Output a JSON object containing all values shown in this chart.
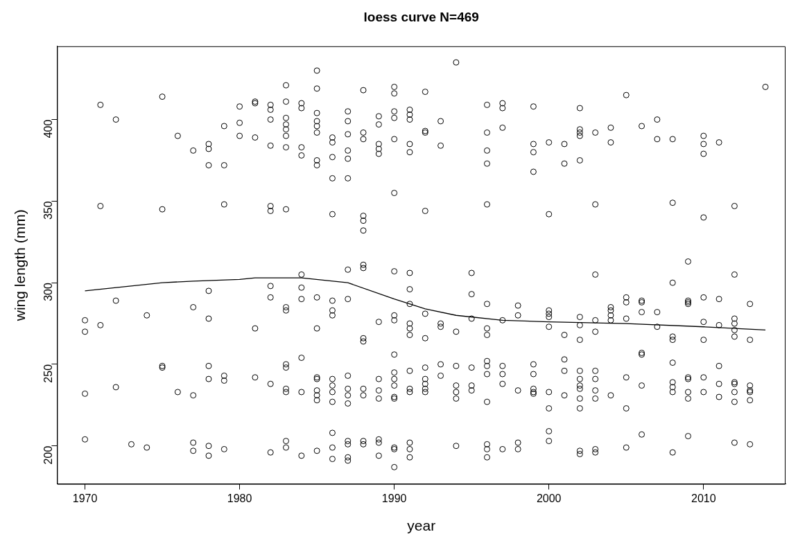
{
  "chart_data": {
    "type": "scatter",
    "title": "loess curve N=469",
    "xlabel": "year",
    "ylabel": "wing length (mm)",
    "xlim": [
      1968.2,
      2015.3
    ],
    "ylim": [
      176.7,
      444.9
    ],
    "xticks": [
      1970,
      1980,
      1990,
      2000,
      2010
    ],
    "yticks": [
      200,
      250,
      300,
      350,
      400
    ],
    "grid": false,
    "legend": false,
    "series": [
      {
        "color": "#000000",
        "marker": "circle",
        "x": [
          1970,
          1970,
          1970,
          1970,
          1971,
          1971,
          1971,
          1972,
          1972,
          1972,
          1973,
          1974,
          1974,
          1975,
          1975,
          1975,
          1975,
          1976,
          1976,
          1977,
          1977,
          1977,
          1977,
          1977,
          1978,
          1978,
          1978,
          1978,
          1978,
          1978,
          1978,
          1978,
          1978,
          1979,
          1979,
          1979,
          1979,
          1979,
          1979,
          1980,
          1980,
          1980,
          1981,
          1981,
          1981,
          1981,
          1981,
          1982,
          1982,
          1982,
          1982,
          1982,
          1982,
          1982,
          1982,
          1982,
          1982,
          1983,
          1983,
          1983,
          1983,
          1983,
          1983,
          1983,
          1983,
          1983,
          1983,
          1983,
          1983,
          1983,
          1983,
          1983,
          1983,
          1984,
          1984,
          1984,
          1984,
          1984,
          1984,
          1984,
          1984,
          1984,
          1984,
          1985,
          1985,
          1985,
          1985,
          1985,
          1985,
          1985,
          1985,
          1985,
          1985,
          1985,
          1985,
          1985,
          1985,
          1985,
          1985,
          1986,
          1986,
          1986,
          1986,
          1986,
          1986,
          1986,
          1986,
          1986,
          1986,
          1986,
          1986,
          1986,
          1986,
          1986,
          1987,
          1987,
          1987,
          1987,
          1987,
          1987,
          1987,
          1987,
          1987,
          1987,
          1987,
          1987,
          1987,
          1987,
          1987,
          1987,
          1988,
          1988,
          1988,
          1988,
          1988,
          1988,
          1988,
          1988,
          1988,
          1988,
          1988,
          1988,
          1988,
          1988,
          1989,
          1989,
          1989,
          1989,
          1989,
          1989,
          1989,
          1989,
          1989,
          1989,
          1989,
          1989,
          1990,
          1990,
          1990,
          1990,
          1990,
          1990,
          1990,
          1990,
          1990,
          1990,
          1990,
          1990,
          1990,
          1990,
          1990,
          1990,
          1990,
          1990,
          1991,
          1991,
          1991,
          1991,
          1991,
          1991,
          1991,
          1991,
          1991,
          1991,
          1991,
          1991,
          1991,
          1991,
          1991,
          1991,
          1991,
          1992,
          1992,
          1992,
          1992,
          1992,
          1992,
          1992,
          1992,
          1992,
          1992,
          1992,
          1993,
          1993,
          1993,
          1993,
          1993,
          1993,
          1994,
          1994,
          1994,
          1994,
          1994,
          1994,
          1994,
          1995,
          1995,
          1995,
          1995,
          1995,
          1995,
          1996,
          1996,
          1996,
          1996,
          1996,
          1996,
          1996,
          1996,
          1996,
          1996,
          1996,
          1996,
          1996,
          1996,
          1996,
          1997,
          1997,
          1997,
          1997,
          1997,
          1997,
          1997,
          1997,
          1998,
          1998,
          1998,
          1998,
          1998,
          1999,
          1999,
          1999,
          1999,
          1999,
          1999,
          1999,
          1999,
          1999,
          2000,
          2000,
          2000,
          2000,
          2000,
          2000,
          2000,
          2000,
          2000,
          2000,
          2001,
          2001,
          2001,
          2001,
          2001,
          2001,
          2002,
          2002,
          2002,
          2002,
          2002,
          2002,
          2002,
          2002,
          2002,
          2002,
          2002,
          2002,
          2002,
          2002,
          2002,
          2002,
          2003,
          2003,
          2003,
          2003,
          2003,
          2003,
          2003,
          2003,
          2003,
          2003,
          2003,
          2004,
          2004,
          2004,
          2004,
          2004,
          2004,
          2004,
          2005,
          2005,
          2005,
          2005,
          2005,
          2005,
          2005,
          2006,
          2006,
          2006,
          2006,
          2006,
          2006,
          2006,
          2006,
          2007,
          2007,
          2007,
          2007,
          2008,
          2008,
          2008,
          2008,
          2008,
          2008,
          2008,
          2008,
          2008,
          2008,
          2009,
          2009,
          2009,
          2009,
          2009,
          2009,
          2009,
          2009,
          2009,
          2010,
          2010,
          2010,
          2010,
          2010,
          2010,
          2010,
          2010,
          2010,
          2011,
          2011,
          2011,
          2011,
          2011,
          2011,
          2012,
          2012,
          2012,
          2012,
          2012,
          2012,
          2012,
          2012,
          2012,
          2012,
          2012,
          2013,
          2013,
          2013,
          2013,
          2013,
          2013,
          2013,
          2014
        ],
        "values": [
          277,
          270,
          232,
          204,
          409,
          347,
          274,
          400,
          289,
          236,
          201,
          280,
          199,
          414,
          345,
          249,
          248,
          390,
          233,
          381,
          285,
          231,
          202,
          197,
          385,
          382,
          372,
          295,
          278,
          249,
          241,
          200,
          194,
          396,
          372,
          348,
          243,
          240,
          198,
          408,
          398,
          390,
          411,
          410,
          389,
          272,
          242,
          409,
          406,
          400,
          384,
          347,
          344,
          298,
          291,
          238,
          196,
          421,
          411,
          401,
          397,
          394,
          390,
          383,
          345,
          285,
          283,
          250,
          248,
          235,
          233,
          203,
          199,
          410,
          407,
          383,
          378,
          305,
          297,
          290,
          254,
          233,
          194,
          430,
          419,
          404,
          399,
          396,
          392,
          375,
          372,
          291,
          272,
          242,
          241,
          234,
          231,
          228,
          197,
          389,
          386,
          377,
          364,
          342,
          289,
          283,
          280,
          241,
          237,
          233,
          227,
          208,
          199,
          192,
          405,
          399,
          391,
          381,
          376,
          364,
          308,
          290,
          243,
          235,
          231,
          226,
          203,
          201,
          193,
          191,
          418,
          392,
          388,
          341,
          338,
          332,
          311,
          309,
          266,
          264,
          235,
          231,
          203,
          201,
          402,
          397,
          385,
          382,
          379,
          276,
          241,
          234,
          229,
          204,
          202,
          194,
          420,
          416,
          405,
          401,
          388,
          355,
          307,
          280,
          277,
          256,
          245,
          241,
          237,
          230,
          229,
          199,
          198,
          187,
          406,
          403,
          400,
          385,
          380,
          306,
          296,
          287,
          275,
          272,
          268,
          246,
          235,
          233,
          202,
          198,
          193,
          417,
          393,
          392,
          344,
          281,
          266,
          248,
          241,
          238,
          235,
          233,
          399,
          384,
          275,
          273,
          250,
          243,
          435,
          270,
          249,
          237,
          233,
          229,
          200,
          306,
          293,
          278,
          248,
          237,
          234,
          409,
          392,
          381,
          373,
          348,
          287,
          272,
          268,
          252,
          249,
          244,
          227,
          201,
          198,
          193,
          410,
          407,
          395,
          277,
          249,
          244,
          238,
          198,
          286,
          280,
          234,
          202,
          198,
          408,
          385,
          380,
          368,
          250,
          244,
          235,
          233,
          232,
          386,
          342,
          283,
          281,
          279,
          273,
          233,
          223,
          209,
          203,
          385,
          373,
          268,
          253,
          246,
          231,
          407,
          394,
          392,
          390,
          375,
          279,
          274,
          265,
          246,
          241,
          237,
          235,
          229,
          223,
          197,
          195,
          392,
          348,
          305,
          277,
          270,
          246,
          241,
          234,
          229,
          198,
          196,
          395,
          386,
          285,
          283,
          280,
          277,
          231,
          415,
          291,
          288,
          278,
          242,
          223,
          199,
          396,
          289,
          288,
          282,
          257,
          256,
          237,
          207,
          400,
          388,
          282,
          273,
          388,
          349,
          300,
          267,
          265,
          251,
          239,
          236,
          233,
          196,
          313,
          289,
          288,
          287,
          242,
          241,
          233,
          229,
          206,
          390,
          385,
          379,
          340,
          291,
          276,
          265,
          242,
          233,
          386,
          290,
          274,
          249,
          238,
          230,
          347,
          305,
          278,
          275,
          271,
          267,
          239,
          238,
          233,
          227,
          202,
          287,
          265,
          237,
          234,
          233,
          228,
          201,
          420
        ]
      },
      {
        "type": "line",
        "color": "#000000",
        "marker": "none",
        "x": [
          1970,
          1975,
          1977,
          1980,
          1981,
          1984,
          1987,
          1990,
          1992,
          1994,
          1997,
          2000,
          2005,
          2010,
          2014
        ],
        "values": [
          295,
          300,
          301,
          302,
          303,
          303,
          300,
          290,
          284,
          280,
          277,
          276,
          275,
          273,
          271
        ]
      }
    ]
  }
}
